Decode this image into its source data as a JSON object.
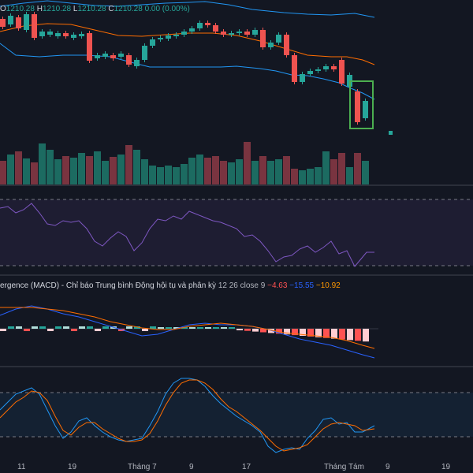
{
  "ohlc": {
    "open_label": "O",
    "open": "1210.28",
    "high_label": "H",
    "high": "1210.28",
    "low_label": "L",
    "low": "1210.28",
    "close_label": "C",
    "close": "1210.28",
    "change": "0.00 (0.00%)"
  },
  "macd": {
    "title": "ergence (MACD) - Chỉ báo Trung bình Động hội tụ và phân kỳ",
    "params": "12 26 close 9",
    "histogram": "−4.63",
    "macd": "−15.55",
    "signal": "−10.92",
    "colors": {
      "histogram": "#ff5252",
      "macd": "#2962ff",
      "signal": "#ff9800"
    }
  },
  "x_axis": {
    "ticks": [
      "11",
      "19",
      "Tháng 7",
      "9",
      "17",
      "Tháng Tám",
      "9",
      "19"
    ]
  },
  "colors": {
    "up": "#26a69a",
    "down": "#ef5350",
    "bb_band": "#2196f3",
    "bb_basis": "#ff6d00",
    "rsi": "#7e57c2",
    "stoch_k": "#2196f3",
    "stoch_d": "#ff6d00",
    "highlight": "#4caf50"
  },
  "candles": [
    {
      "o": 24,
      "c": 34
    },
    {
      "o": 31,
      "c": 20
    },
    {
      "o": 22,
      "c": 36
    },
    {
      "o": 38,
      "c": 18
    },
    {
      "o": 18,
      "c": 48
    },
    {
      "o": 46,
      "c": 40
    },
    {
      "o": 44,
      "c": 40
    },
    {
      "o": 46,
      "c": 42
    },
    {
      "o": 42,
      "c": 46
    },
    {
      "o": 48,
      "c": 44
    },
    {
      "o": 46,
      "c": 43
    },
    {
      "o": 42,
      "c": 77
    },
    {
      "o": 74,
      "c": 70
    },
    {
      "o": 72,
      "c": 68
    },
    {
      "o": 70,
      "c": 74
    },
    {
      "o": 72,
      "c": 68
    },
    {
      "o": 70,
      "c": 82
    },
    {
      "o": 84,
      "c": 76
    },
    {
      "o": 76,
      "c": 58
    },
    {
      "o": 58,
      "c": 50
    },
    {
      "o": 50,
      "c": 48
    },
    {
      "o": 49,
      "c": 45
    },
    {
      "o": 45,
      "c": 44
    },
    {
      "o": 44,
      "c": 40
    },
    {
      "o": 40,
      "c": 36
    },
    {
      "o": 36,
      "c": 29
    },
    {
      "o": 29,
      "c": 32
    },
    {
      "o": 32,
      "c": 40
    },
    {
      "o": 40,
      "c": 44
    },
    {
      "o": 44,
      "c": 42
    },
    {
      "o": 42,
      "c": 40
    },
    {
      "o": 40,
      "c": 44
    },
    {
      "o": 44,
      "c": 38
    },
    {
      "o": 38,
      "c": 60
    },
    {
      "o": 60,
      "c": 54
    },
    {
      "o": 54,
      "c": 44
    },
    {
      "o": 44,
      "c": 70
    },
    {
      "o": 70,
      "c": 104
    },
    {
      "o": 104,
      "c": 94
    },
    {
      "o": 94,
      "c": 90
    },
    {
      "o": 90,
      "c": 88
    },
    {
      "o": 88,
      "c": 84
    },
    {
      "o": 84,
      "c": 88
    },
    {
      "o": 76,
      "c": 106
    },
    {
      "o": 110,
      "c": 95
    },
    {
      "o": 116,
      "c": 155
    },
    {
      "o": 150,
      "c": 128
    }
  ],
  "volumes": [
    30,
    38,
    42,
    33,
    28,
    52,
    44,
    32,
    36,
    34,
    40,
    36,
    42,
    30,
    35,
    38,
    50,
    44,
    32,
    24,
    22,
    24,
    22,
    26,
    34,
    38,
    34,
    36,
    30,
    28,
    32,
    54,
    30,
    36,
    30,
    32,
    36,
    20,
    18,
    20,
    22,
    42,
    32,
    40,
    22,
    40,
    30
  ]
}
